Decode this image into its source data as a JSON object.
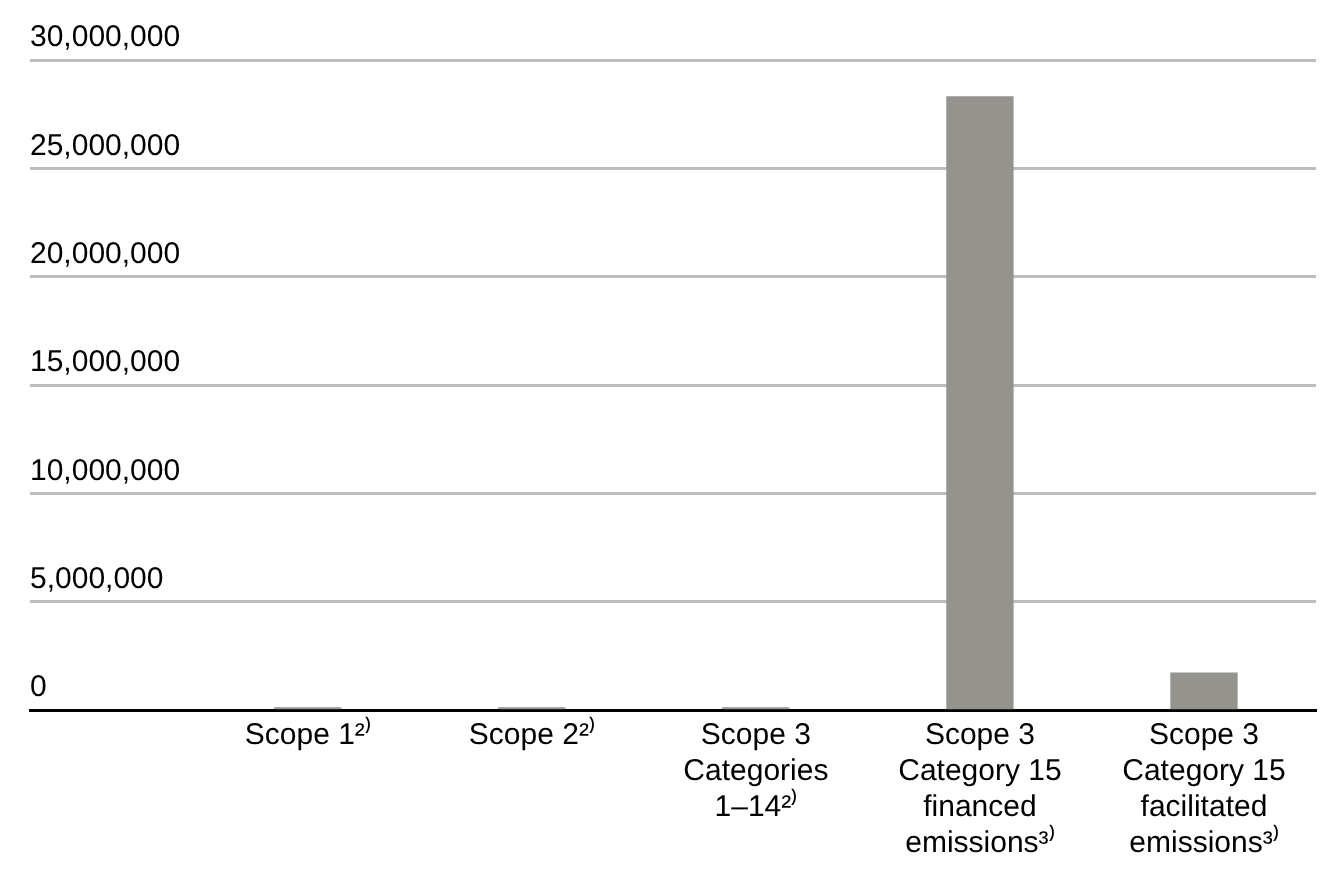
{
  "chart_data": {
    "type": "bar",
    "categories": [
      "Scope 1²⁾",
      "Scope 2²⁾",
      "Scope 3\nCategories\n1–14²⁾",
      "Scope 3\nCategory 15\nfinanced\nemissions³⁾",
      "Scope 3\nCategory 15\nfacilitated\nemissions³⁾"
    ],
    "values": [
      100000,
      100000,
      100000,
      28300000,
      1700000
    ],
    "color": "#94938e",
    "ylim": [
      0,
      30000000
    ],
    "yticks": [
      0,
      {
        "value": 5000000,
        "label": "5,000,000"
      },
      {
        "value": 10000000,
        "label": "10,000,000"
      },
      {
        "value": 15000000,
        "label": "15,000,000"
      },
      {
        "value": 20000000,
        "label": "20,000,000"
      },
      {
        "value": 25000000,
        "label": "25,000,000"
      },
      {
        "value": 30000000,
        "label": "30,000,000"
      }
    ],
    "grid": "y",
    "legend": false
  }
}
